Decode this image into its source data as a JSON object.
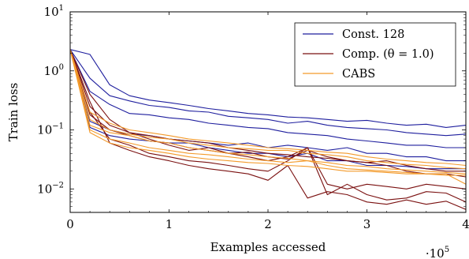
{
  "chart_data": {
    "type": "line",
    "xlabel": "Examples accessed",
    "ylabel": "Train loss",
    "x_multiplier": "·10",
    "x_multiplier_exp": "5",
    "xlim": [
      0,
      4
    ],
    "ylim": [
      0.004,
      10
    ],
    "yscale": "log",
    "x_ticks": [
      "0",
      "1",
      "2",
      "3",
      "4"
    ],
    "y_ticks": [
      {
        "base": "10",
        "exp": "−2",
        "value": 0.01
      },
      {
        "base": "10",
        "exp": "−1",
        "value": 0.1
      },
      {
        "base": "10",
        "exp": "0",
        "value": 1
      },
      {
        "base": "10",
        "exp": "1",
        "value": 10
      }
    ],
    "legend_position": "top-right",
    "x": [
      0,
      0.2,
      0.4,
      0.6,
      0.8,
      1.0,
      1.2,
      1.4,
      1.6,
      1.8,
      2.0,
      2.2,
      2.4,
      2.6,
      2.8,
      3.0,
      3.2,
      3.4,
      3.6,
      3.8,
      4.0
    ],
    "series": [
      {
        "name": "Const. 128",
        "color": "#1f1f9e",
        "runs": [
          [
            2.3,
            1.9,
            0.58,
            0.38,
            0.32,
            0.29,
            0.26,
            0.23,
            0.21,
            0.19,
            0.18,
            0.165,
            0.16,
            0.15,
            0.14,
            0.145,
            0.13,
            0.12,
            0.125,
            0.11,
            0.12
          ],
          [
            2.3,
            0.75,
            0.38,
            0.31,
            0.26,
            0.24,
            0.21,
            0.2,
            0.17,
            0.16,
            0.15,
            0.13,
            0.14,
            0.12,
            0.11,
            0.105,
            0.1,
            0.09,
            0.085,
            0.08,
            0.085
          ],
          [
            2.3,
            0.45,
            0.27,
            0.19,
            0.18,
            0.16,
            0.15,
            0.13,
            0.12,
            0.11,
            0.105,
            0.09,
            0.085,
            0.08,
            0.07,
            0.065,
            0.06,
            0.055,
            0.055,
            0.05,
            0.05
          ],
          [
            2.3,
            0.14,
            0.1,
            0.085,
            0.08,
            0.07,
            0.065,
            0.06,
            0.055,
            0.06,
            0.05,
            0.055,
            0.05,
            0.045,
            0.05,
            0.04,
            0.04,
            0.035,
            0.035,
            0.03,
            0.03
          ],
          [
            2.3,
            0.11,
            0.08,
            0.07,
            0.065,
            0.06,
            0.06,
            0.05,
            0.045,
            0.04,
            0.04,
            0.035,
            0.04,
            0.03,
            0.03,
            0.025,
            0.025,
            0.024,
            0.022,
            0.022,
            0.022
          ]
        ]
      },
      {
        "name": "Comp. (θ = 1.0)",
        "color": "#7a1010",
        "runs": [
          [
            2.3,
            0.3,
            0.06,
            0.045,
            0.035,
            0.03,
            0.025,
            0.022,
            0.02,
            0.018,
            0.014,
            0.025,
            0.007,
            0.009,
            0.008,
            0.006,
            0.0055,
            0.0065,
            0.0055,
            0.0062,
            0.0045
          ],
          [
            2.3,
            0.2,
            0.07,
            0.055,
            0.04,
            0.035,
            0.03,
            0.028,
            0.025,
            0.022,
            0.02,
            0.03,
            0.05,
            0.008,
            0.012,
            0.008,
            0.0065,
            0.007,
            0.009,
            0.0085,
            0.006
          ],
          [
            2.3,
            0.4,
            0.15,
            0.09,
            0.07,
            0.055,
            0.045,
            0.05,
            0.04,
            0.035,
            0.03,
            0.035,
            0.05,
            0.012,
            0.01,
            0.012,
            0.011,
            0.01,
            0.012,
            0.011,
            0.01
          ],
          [
            2.3,
            0.18,
            0.1,
            0.08,
            0.065,
            0.06,
            0.05,
            0.045,
            0.04,
            0.042,
            0.035,
            0.032,
            0.045,
            0.035,
            0.03,
            0.028,
            0.025,
            0.02,
            0.018,
            0.018,
            0.016
          ],
          [
            2.3,
            0.25,
            0.12,
            0.09,
            0.08,
            0.07,
            0.065,
            0.06,
            0.05,
            0.045,
            0.04,
            0.038,
            0.035,
            0.033,
            0.03,
            0.028,
            0.03,
            0.025,
            0.022,
            0.02,
            0.02
          ]
        ]
      },
      {
        "name": "CABS",
        "color": "#f39a2b",
        "runs": [
          [
            2.3,
            0.09,
            0.06,
            0.05,
            0.045,
            0.04,
            0.035,
            0.032,
            0.03,
            0.028,
            0.027,
            0.025,
            0.024,
            0.022,
            0.02,
            0.02,
            0.019,
            0.018,
            0.018,
            0.017,
            0.017
          ],
          [
            2.3,
            0.1,
            0.07,
            0.06,
            0.05,
            0.045,
            0.04,
            0.038,
            0.035,
            0.032,
            0.03,
            0.028,
            0.03,
            0.025,
            0.022,
            0.021,
            0.02,
            0.019,
            0.018,
            0.018,
            0.012
          ],
          [
            2.3,
            0.12,
            0.09,
            0.08,
            0.065,
            0.06,
            0.05,
            0.045,
            0.04,
            0.038,
            0.035,
            0.033,
            0.03,
            0.028,
            0.025,
            0.024,
            0.022,
            0.021,
            0.02,
            0.019,
            0.018
          ],
          [
            2.3,
            0.15,
            0.1,
            0.085,
            0.075,
            0.07,
            0.06,
            0.055,
            0.05,
            0.048,
            0.045,
            0.045,
            0.04,
            0.038,
            0.035,
            0.03,
            0.028,
            0.026,
            0.025,
            0.023,
            0.022
          ],
          [
            2.3,
            0.2,
            0.13,
            0.1,
            0.09,
            0.08,
            0.07,
            0.065,
            0.06,
            0.055,
            0.05,
            0.048,
            0.045,
            0.042,
            0.04,
            0.035,
            0.032,
            0.03,
            0.028,
            0.027,
            0.025
          ]
        ]
      }
    ]
  }
}
